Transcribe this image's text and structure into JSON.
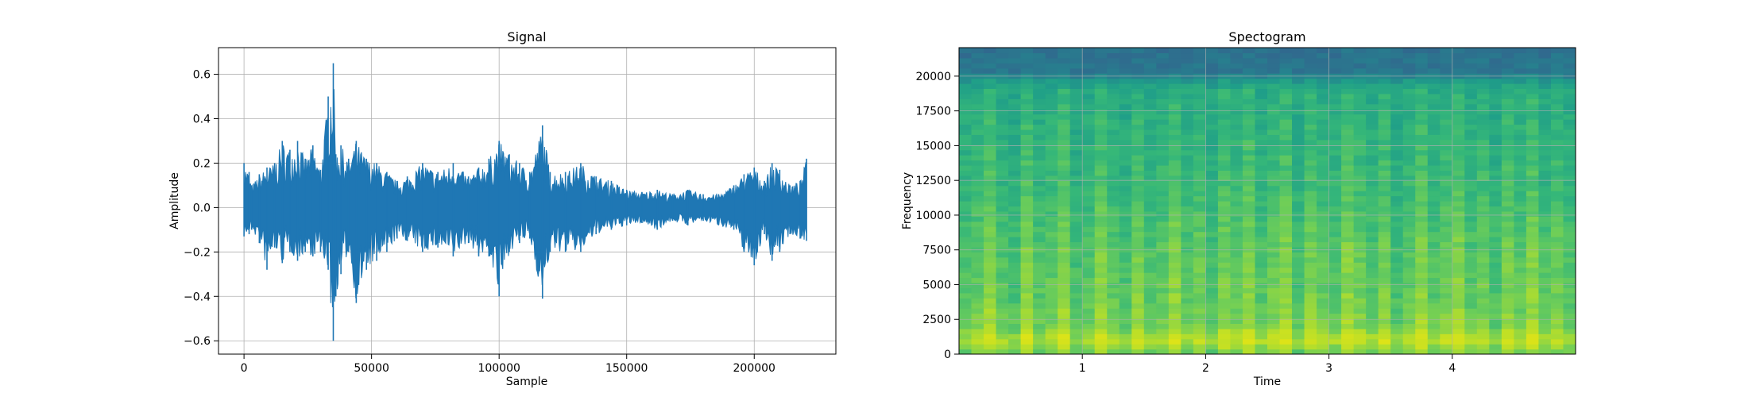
{
  "chart_data": [
    {
      "type": "line",
      "title": "Signal",
      "xlabel": "Sample",
      "ylabel": "Amplitude",
      "xlim": [
        -10000,
        232000
      ],
      "ylim": [
        -0.66,
        0.72
      ],
      "xticks": [
        0,
        50000,
        100000,
        150000,
        200000
      ],
      "xtick_labels": [
        "0",
        "50000",
        "100000",
        "150000",
        "200000"
      ],
      "yticks": [
        -0.6,
        -0.4,
        -0.2,
        0.0,
        0.2,
        0.4,
        0.6
      ],
      "ytick_labels": [
        "−0.6",
        "−0.4",
        "−0.2",
        "0.0",
        "0.2",
        "0.4",
        "0.6"
      ],
      "grid": true,
      "color": "#1f77b4",
      "series": [
        {
          "x": [
            0,
            2000,
            3000,
            6000,
            9000,
            12000,
            15000,
            18000,
            21000,
            24000,
            27000,
            30000,
            33000,
            35000,
            36000,
            38000,
            41000,
            44000,
            48000,
            52000,
            56000,
            60000,
            64000,
            70000,
            76000,
            82000,
            88000,
            92000,
            96000,
            100000,
            104000,
            108000,
            112000,
            117000,
            120000,
            126000,
            132000,
            138000,
            144000,
            150000,
            156000,
            162000,
            168000,
            174000,
            180000,
            186000,
            192000,
            196000,
            200000,
            204000,
            207000,
            210000,
            214000,
            218000,
            220500
          ],
          "max": [
            0.2,
            0.16,
            0.1,
            0.15,
            0.18,
            0.2,
            0.3,
            0.26,
            0.3,
            0.22,
            0.28,
            0.17,
            0.5,
            0.65,
            0.24,
            0.28,
            0.22,
            0.3,
            0.22,
            0.2,
            0.16,
            0.12,
            0.14,
            0.2,
            0.16,
            0.2,
            0.14,
            0.18,
            0.22,
            0.3,
            0.24,
            0.2,
            0.16,
            0.37,
            0.16,
            0.16,
            0.2,
            0.14,
            0.12,
            0.08,
            0.07,
            0.08,
            0.06,
            0.08,
            0.06,
            0.06,
            0.1,
            0.15,
            0.18,
            0.12,
            0.2,
            0.17,
            0.1,
            0.12,
            0.22
          ],
          "min": [
            -0.13,
            -0.12,
            -0.1,
            -0.16,
            -0.28,
            -0.18,
            -0.25,
            -0.2,
            -0.24,
            -0.2,
            -0.22,
            -0.2,
            -0.28,
            -0.6,
            -0.4,
            -0.3,
            -0.2,
            -0.43,
            -0.28,
            -0.24,
            -0.2,
            -0.14,
            -0.15,
            -0.2,
            -0.18,
            -0.22,
            -0.16,
            -0.22,
            -0.22,
            -0.4,
            -0.2,
            -0.16,
            -0.14,
            -0.41,
            -0.2,
            -0.2,
            -0.2,
            -0.12,
            -0.1,
            -0.08,
            -0.07,
            -0.1,
            -0.06,
            -0.08,
            -0.06,
            -0.08,
            -0.1,
            -0.2,
            -0.26,
            -0.12,
            -0.24,
            -0.2,
            -0.12,
            -0.14,
            -0.15
          ]
        }
      ]
    },
    {
      "type": "heatmap",
      "title": "Spectogram",
      "xlabel": "Time",
      "ylabel": "Frequency",
      "xlim": [
        0,
        5.0
      ],
      "ylim": [
        0,
        22050
      ],
      "xticks": [
        1,
        2,
        3,
        4
      ],
      "xtick_labels": [
        "1",
        "2",
        "3",
        "4"
      ],
      "yticks": [
        0,
        2500,
        5000,
        7500,
        10000,
        12500,
        15000,
        17500,
        20000
      ],
      "ytick_labels": [
        "0",
        "2500",
        "5000",
        "7500",
        "10000",
        "12500",
        "15000",
        "17500",
        "20000"
      ],
      "grid": true,
      "colormap": [
        "#31688e",
        "#26828e",
        "#1f9e89",
        "#35b779",
        "#6ece58",
        "#b5de2b",
        "#dde318"
      ],
      "time_intensity": [
        0.5,
        0.6,
        0.9,
        0.5,
        0.4,
        0.9,
        0.5,
        0.6,
        0.9,
        0.4,
        0.5,
        0.9,
        0.6,
        0.4,
        0.8,
        0.5,
        0.6,
        0.9,
        0.5,
        0.7,
        0.4,
        0.8,
        0.6,
        0.9,
        0.5,
        0.7,
        0.9,
        0.4,
        0.8,
        0.6,
        0.5,
        0.9,
        0.7,
        0.5,
        0.8,
        0.4,
        0.6,
        0.9,
        0.5,
        0.7,
        0.9,
        0.5,
        0.7,
        0.4,
        0.8,
        0.6,
        0.9,
        0.5,
        0.7,
        0.5
      ],
      "freq_profile": [
        {
          "f": 0,
          "v": 0.7
        },
        {
          "f": 1000,
          "v": 0.95
        },
        {
          "f": 2000,
          "v": 0.75
        },
        {
          "f": 4000,
          "v": 0.7
        },
        {
          "f": 8000,
          "v": 0.65
        },
        {
          "f": 12000,
          "v": 0.55
        },
        {
          "f": 16000,
          "v": 0.5
        },
        {
          "f": 19000,
          "v": 0.45
        },
        {
          "f": 19800,
          "v": 0.3
        },
        {
          "f": 20200,
          "v": 0.1
        },
        {
          "f": 22050,
          "v": 0.05
        }
      ]
    }
  ]
}
